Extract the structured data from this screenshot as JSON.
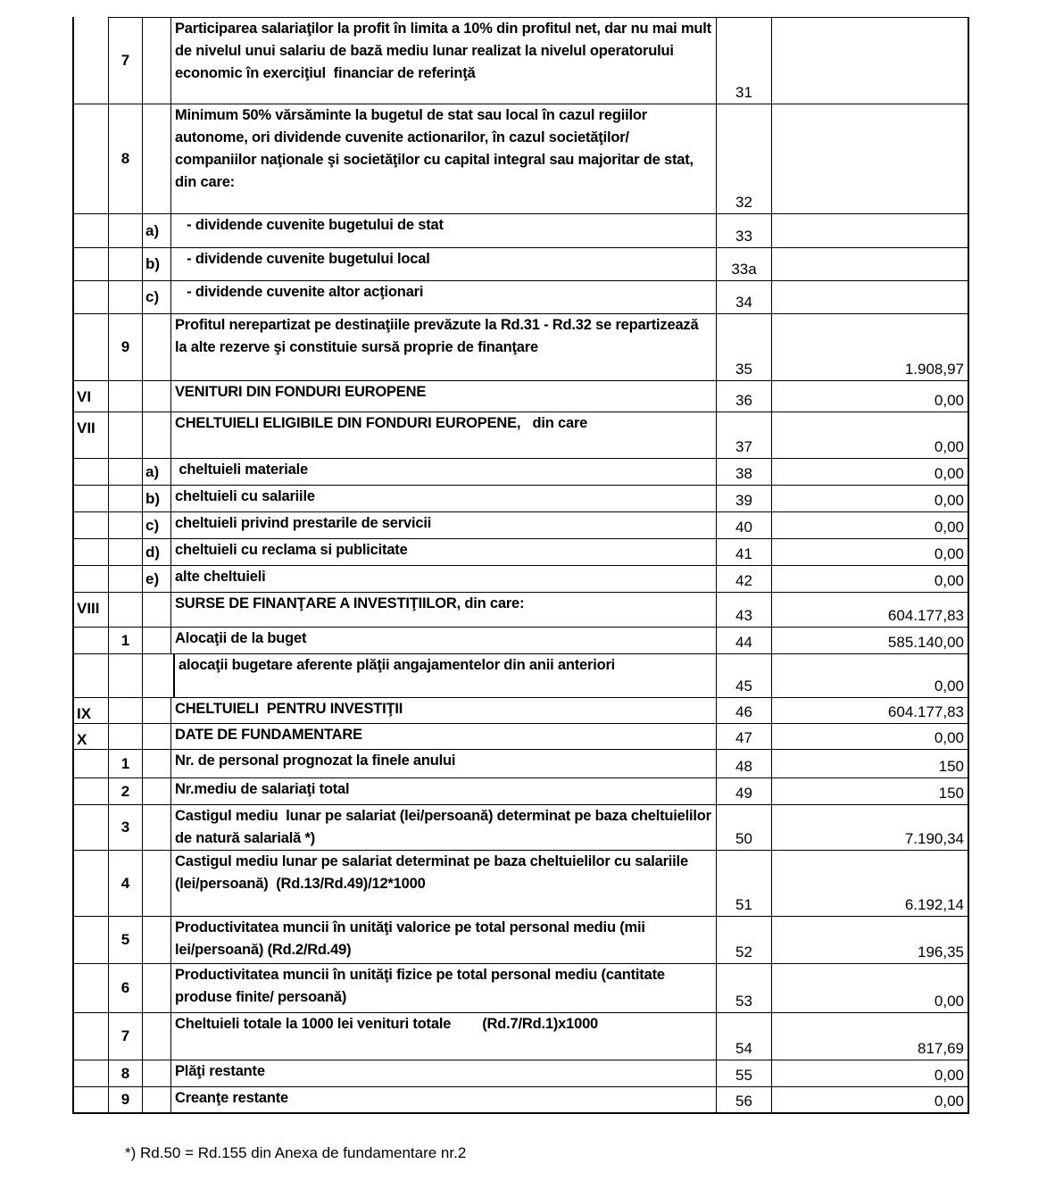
{
  "rows": [
    {
      "c1": "",
      "num": "7",
      "letter": "",
      "desc": "Participarea salariaţilor la profit în limita a 10% din profitul net, dar nu mai mult de nivelul unui salariu de bază mediu lunar realizat la nivelul operatorului economic în exerciţiul  financiar de referinţă",
      "code": "31",
      "value": ""
    },
    {
      "c1": "",
      "num": "8",
      "letter": "",
      "desc": "Minimum 50% vărsăminte la bugetul de stat sau local în cazul regiilor autonome, ori dividende cuvenite actionarilor, în cazul societăţilor/ companiilor naţionale şi societăţilor cu capital integral sau majoritar de stat, din care:",
      "code": "32",
      "value": ""
    },
    {
      "c1": "",
      "num": "",
      "letter": "a)",
      "desc": "   - dividende cuvenite bugetului de stat",
      "code": "33",
      "value": ""
    },
    {
      "c1": "",
      "num": "",
      "letter": "b)",
      "desc": "   - dividende cuvenite bugetului local",
      "code": "33a",
      "value": ""
    },
    {
      "c1": "",
      "num": "",
      "letter": "c)",
      "desc": "   - dividende cuvenite altor acţionari",
      "code": "34",
      "value": ""
    },
    {
      "c1": "",
      "num": "9",
      "letter": "",
      "desc": "Profitul nerepartizat pe destinaţiile prevăzute la Rd.31 - Rd.32 se repartizează la alte rezerve şi constituie sursă proprie de finanţare",
      "code": "35",
      "value": "1.908,97"
    },
    {
      "c1": "VI",
      "num": "",
      "letter": "",
      "desc": "VENITURI DIN FONDURI EUROPENE",
      "code": "36",
      "value": "0,00"
    },
    {
      "c1": "VII",
      "num": "",
      "letter": "",
      "desc": "CHELTUIELI ELIGIBILE DIN FONDURI EUROPENE,   din care",
      "code": "37",
      "value": "0,00"
    },
    {
      "c1": "",
      "num": "",
      "letter": "a)",
      "desc": " cheltuieli materiale",
      "code": "38",
      "value": "0,00"
    },
    {
      "c1": "",
      "num": "",
      "letter": "b)",
      "desc": "cheltuieli cu salariile",
      "code": "39",
      "value": "0,00"
    },
    {
      "c1": "",
      "num": "",
      "letter": "c)",
      "desc": "cheltuieli privind prestarile de servicii",
      "code": "40",
      "value": "0,00"
    },
    {
      "c1": "",
      "num": "",
      "letter": "d)",
      "desc": "cheltuieli cu reclama si publicitate",
      "code": "41",
      "value": "0,00"
    },
    {
      "c1": "",
      "num": "",
      "letter": "e)",
      "desc": "alte cheltuieli",
      "code": "42",
      "value": "0,00"
    },
    {
      "c1": "VIII",
      "num": "",
      "letter": "",
      "desc": "SURSE DE FINANŢARE A INVESTIŢIILOR, din care:",
      "code": "43",
      "value": "604.177,83"
    },
    {
      "c1": "",
      "num": "1",
      "letter": "",
      "desc": "Alocaţii de la buget",
      "code": "44",
      "value": "585.140,00"
    },
    {
      "c1": "",
      "num": "",
      "letter": "",
      "desc": "alocaţii bugetare aferente plăţii angajamentelor din anii anteriori",
      "code": "45",
      "value": "0,00"
    },
    {
      "c1": "IX",
      "num": "",
      "letter": "",
      "desc": "CHELTUIELI  PENTRU INVESTIŢII",
      "code": "46",
      "value": "604.177,83"
    },
    {
      "c1": "X",
      "num": "",
      "letter": "",
      "desc": "DATE DE FUNDAMENTARE",
      "code": "47",
      "value": "0,00"
    },
    {
      "c1": "",
      "num": "1",
      "letter": "",
      "desc": "Nr. de personal prognozat la finele anului",
      "code": "48",
      "value": "150"
    },
    {
      "c1": "",
      "num": "2",
      "letter": "",
      "desc": "Nr.mediu de salariaţi total",
      "code": "49",
      "value": "150"
    },
    {
      "c1": "",
      "num": "3",
      "letter": "",
      "desc": "Castigul mediu  lunar pe salariat (lei/persoană) determinat pe baza cheltuielilor de natură salarială *)",
      "code": "50",
      "value": "7.190,34"
    },
    {
      "c1": "",
      "num": "4",
      "letter": "",
      "desc": "Castigul mediu lunar pe salariat determinat pe baza cheltuielilor cu salariile (lei/persoană)  (Rd.13/Rd.49)/12*1000",
      "code": "51",
      "value": "6.192,14"
    },
    {
      "c1": "",
      "num": "5",
      "letter": "",
      "desc": "Productivitatea muncii în unităţi valorice pe total personal mediu (mii lei/persoană) (Rd.2/Rd.49)",
      "code": "52",
      "value": "196,35"
    },
    {
      "c1": "",
      "num": "6",
      "letter": "",
      "desc": "Productivitatea muncii în unităţi fizice pe total personal mediu (cantitate produse finite/ persoană)",
      "code": "53",
      "value": "0,00"
    },
    {
      "c1": "",
      "num": "7",
      "letter": "",
      "desc": "Cheltuieli totale la 1000 lei venituri totale        (Rd.7/Rd.1)x1000",
      "code": "54",
      "value": "817,69"
    },
    {
      "c1": "",
      "num": "8",
      "letter": "",
      "desc": "Plăţi restante",
      "code": "55",
      "value": "0,00"
    },
    {
      "c1": "",
      "num": "9",
      "letter": "",
      "desc": "Creanţe restante",
      "code": "56",
      "value": "0,00"
    }
  ],
  "footnote": "*) Rd.50 = Rd.155 din Anexa de fundamentare  nr.2"
}
